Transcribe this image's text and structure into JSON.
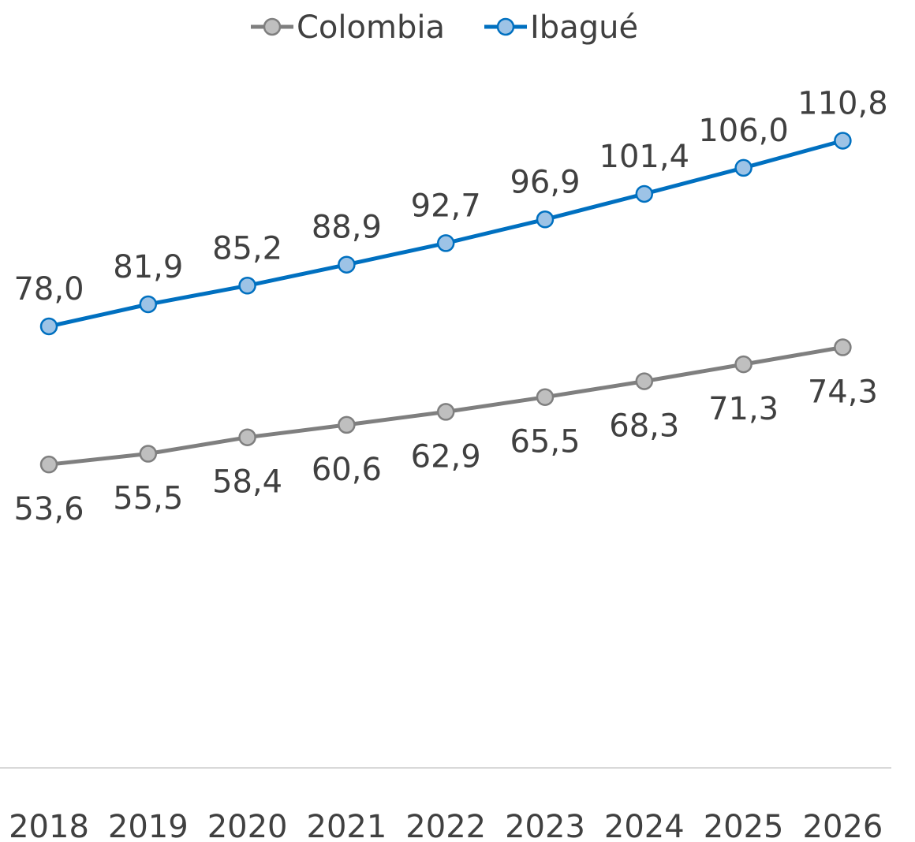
{
  "chart_data": {
    "type": "line",
    "title": "",
    "xlabel": "",
    "ylabel": "",
    "categories": [
      "2018",
      "2019",
      "2020",
      "2021",
      "2022",
      "2023",
      "2024",
      "2025",
      "2026"
    ],
    "ylim": [
      0,
      120
    ],
    "grid": false,
    "legend_position": "top-center",
    "series": [
      {
        "name": "Colombia",
        "color": "#7f7f7f",
        "marker_fill": "#bfbfbf",
        "values": [
          53.6,
          55.5,
          58.4,
          60.6,
          62.9,
          65.5,
          68.3,
          71.3,
          74.3
        ],
        "labels": [
          "53,6",
          "55,5",
          "58,4",
          "60,6",
          "62,9",
          "65,5",
          "68,3",
          "71,3",
          "74,3"
        ],
        "label_position": "below"
      },
      {
        "name": "Ibagué",
        "color": "#0070c0",
        "marker_fill": "#9dc3e6",
        "values": [
          78.0,
          81.9,
          85.2,
          88.9,
          92.7,
          96.9,
          101.4,
          106.0,
          110.8
        ],
        "labels": [
          "78,0",
          "81,9",
          "85,2",
          "88,9",
          "92,7",
          "96,9",
          "101,4",
          "106,0",
          "110,8"
        ],
        "label_position": "above"
      }
    ]
  }
}
